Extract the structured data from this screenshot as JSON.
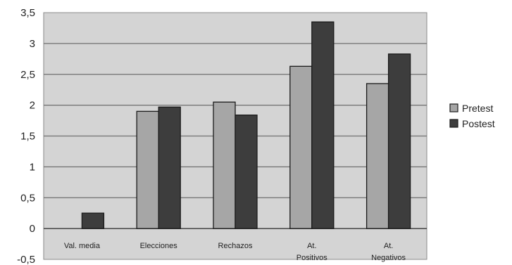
{
  "chart_data": {
    "type": "bar",
    "categories": [
      [
        "Val. media"
      ],
      [
        "Elecciones"
      ],
      [
        "Rechazos"
      ],
      [
        "At.",
        "Positivos"
      ],
      [
        "At.",
        "Negativos"
      ]
    ],
    "series": [
      {
        "name": "Pretest",
        "values": [
          0,
          1.9,
          2.05,
          2.63,
          2.35
        ],
        "color": "#a6a6a6"
      },
      {
        "name": "Postest",
        "values": [
          0.25,
          1.97,
          1.84,
          3.35,
          2.83
        ],
        "color": "#3d3d3d"
      }
    ],
    "ylim": [
      -0.5,
      3.5
    ],
    "yticks": [
      "-0,5",
      "0",
      "0,5",
      "1",
      "1,5",
      "2",
      "2,5",
      "3",
      "3,5"
    ],
    "ytick_values": [
      -0.5,
      0,
      0.5,
      1,
      1.5,
      2,
      2.5,
      3,
      3.5
    ],
    "grid": true,
    "legend": "right",
    "plot_background": "#d4d4d4"
  }
}
